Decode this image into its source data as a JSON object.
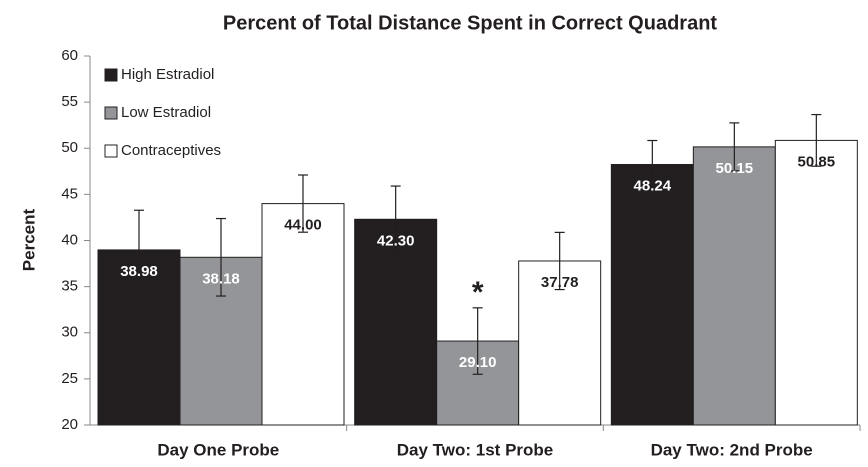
{
  "chart_data": {
    "type": "bar",
    "title": "Percent of Total Distance Spent in Correct Quadrant",
    "y_label": "Percent",
    "categories": [
      "Day One Probe",
      "Day Two: 1st Probe",
      "Day Two: 2nd Probe"
    ],
    "series": [
      {
        "name": "High Estradiol",
        "color": "#231f20",
        "values": [
          38.98,
          42.3,
          48.24
        ],
        "value_labels": [
          "38.98",
          "42.30",
          "48.24"
        ],
        "errors": [
          4.3,
          3.6,
          2.6
        ]
      },
      {
        "name": "Low Estradiol",
        "color": "#939598",
        "values": [
          38.18,
          29.1,
          50.15
        ],
        "value_labels": [
          "38.18",
          "29.10",
          "50.15"
        ],
        "errors": [
          4.2,
          3.6,
          2.6
        ]
      },
      {
        "name": "Contraceptives",
        "color": "#ffffff",
        "values": [
          44.0,
          37.78,
          50.85
        ],
        "value_labels": [
          "44.00",
          "37.78",
          "50.85"
        ],
        "errors": [
          3.1,
          3.1,
          2.8
        ]
      }
    ],
    "annotation": "*",
    "ylim": [
      20,
      60
    ],
    "yticks": [
      20,
      25,
      30,
      35,
      40,
      45,
      50,
      55,
      60
    ],
    "legend": "upper left",
    "grid": false
  }
}
